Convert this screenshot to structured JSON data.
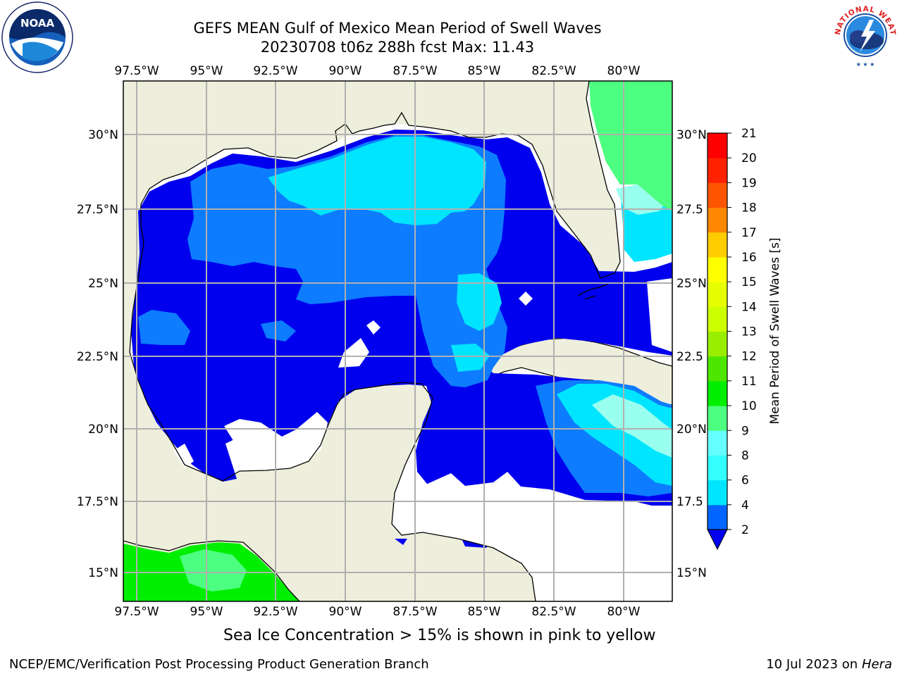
{
  "title": {
    "line1": "GEFS MEAN Gulf of Mexico Mean Period of Swell Waves",
    "line2": "20230708 t06z 288h fcst   Max: 11.43"
  },
  "map": {
    "lon_labels": [
      "97.5°W",
      "95°W",
      "92.5°W",
      "90°W",
      "87.5°W",
      "85°W",
      "82.5°W",
      "80°W"
    ],
    "lat_labels_left": [
      "30°N",
      "27.5°N",
      "25°N",
      "22.5°N",
      "20°N",
      "17.5°N",
      "15°N"
    ],
    "lat_labels_right": [
      "30°N",
      "27.5",
      "25°N",
      "22.5",
      "20°N",
      "17.5",
      "15°N"
    ],
    "lon_range": [
      -98,
      -78.5
    ],
    "lat_range": [
      14,
      31.8
    ],
    "colors": {
      "land": "#eeeedc",
      "ocean_no_data": "#ffffff",
      "grid": "#b0b0b0"
    }
  },
  "colorbar": {
    "label": "Mean Period of Swell Waves [s]",
    "ticks": [
      "2",
      "4",
      "6",
      "8",
      "9",
      "10",
      "11",
      "12",
      "13",
      "14",
      "15",
      "16",
      "17",
      "18",
      "19",
      "20",
      "21"
    ],
    "colors": [
      "#0066ff",
      "#00e5ff",
      "#33ffff",
      "#66ffff",
      "#99ffee",
      "#4dff80",
      "#00ee00",
      "#4de600",
      "#99ee00",
      "#ccff00",
      "#e6ff00",
      "#ffff00",
      "#ffcc00",
      "#ffaa00",
      "#ff8800",
      "#ff5500",
      "#ff2200",
      "#ff0000"
    ],
    "extend_color": "#0000ee"
  },
  "note": "Sea Ice Concentration > 15% is shown in pink to yellow",
  "footer": {
    "left": "NCEP/EMC/Verification Post Processing Product Generation Branch",
    "right_date": "10 Jul 2023 on",
    "right_host": "Hera"
  },
  "logos": {
    "noaa_text": "NOAA",
    "nws_text": "NATIONAL WEATHER SERVICE"
  }
}
